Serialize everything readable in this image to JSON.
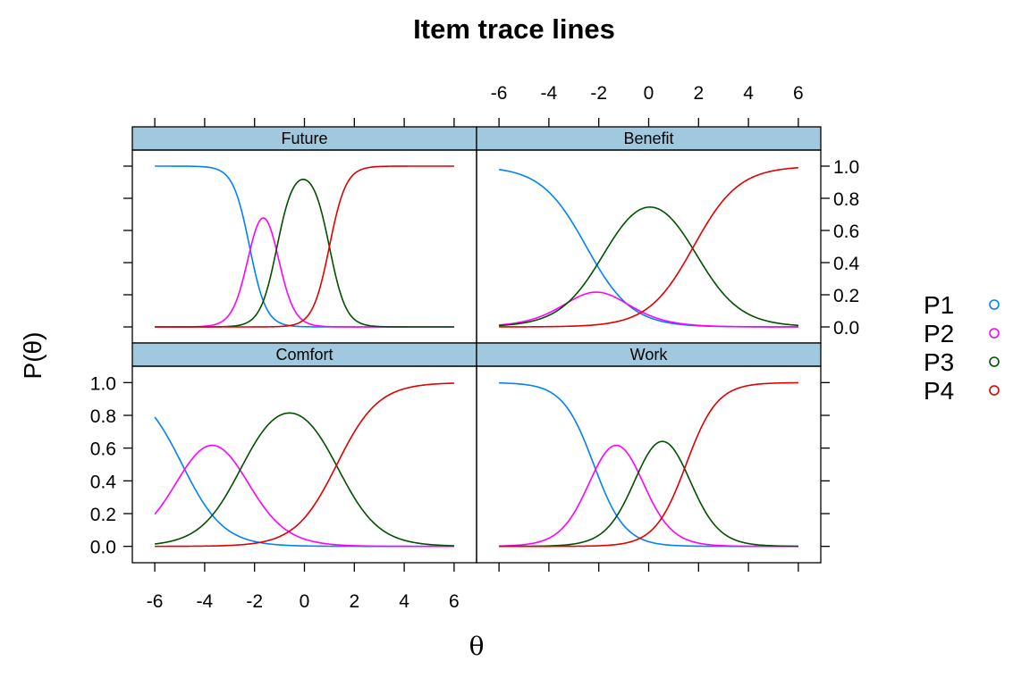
{
  "chart_data": {
    "type": "line",
    "title": "Item trace lines",
    "xlabel": "θ",
    "ylabel": "P(θ)",
    "xlim": [
      -6.9,
      6.9
    ],
    "ylim": [
      -0.1,
      1.1
    ],
    "xticks": [
      -6,
      -4,
      -2,
      0,
      2,
      4,
      6
    ],
    "xtick_labels": [
      "-6",
      "-4",
      "-2",
      "0",
      "2",
      "4",
      "6"
    ],
    "yticks": [
      0,
      0.2,
      0.4,
      0.6,
      0.8,
      1.0
    ],
    "ytick_labels": [
      "0.0",
      "0.2",
      "0.4",
      "0.6",
      "0.8",
      "1.0"
    ],
    "legend": {
      "placement": "right",
      "entries": [
        {
          "name": "P1",
          "color": "#0080FF"
        },
        {
          "name": "P2",
          "color": "#FF00FF"
        },
        {
          "name": "P3",
          "color": "#005000"
        },
        {
          "name": "P4",
          "color": "#E00000"
        }
      ]
    },
    "strip_color": "#A0C8DE",
    "panels": [
      {
        "name": "Future",
        "row": 0,
        "col": 0,
        "a": 3.0,
        "b": [
          -2.2,
          -1.1,
          1.0
        ]
      },
      {
        "name": "Benefit",
        "row": 0,
        "col": 1,
        "a": 1.1,
        "b": [
          -2.5,
          -1.7,
          1.8
        ]
      },
      {
        "name": "Comfort",
        "row": 1,
        "col": 0,
        "a": 1.2,
        "b": [
          -4.9,
          -2.5,
          1.3
        ]
      },
      {
        "name": "Work",
        "row": 1,
        "col": 1,
        "a": 1.6,
        "b": [
          -2.2,
          -0.4,
          1.5
        ]
      }
    ]
  }
}
